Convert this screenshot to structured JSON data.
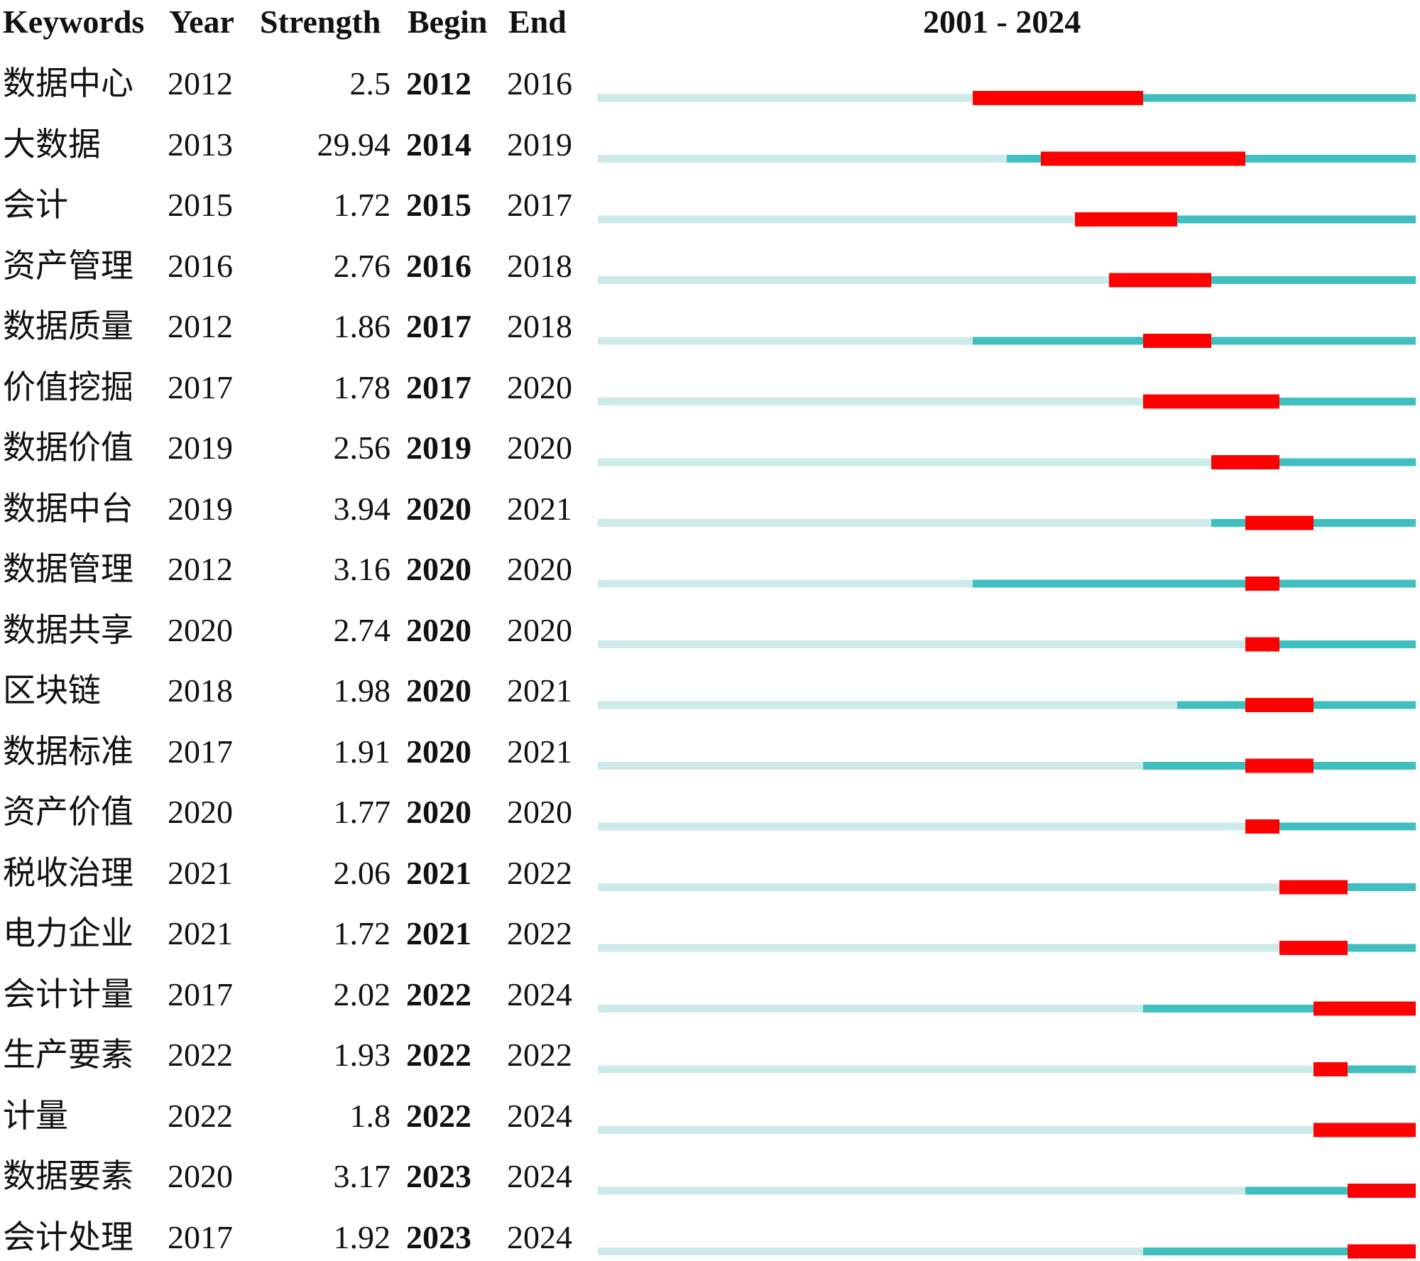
{
  "chart_data": {
    "type": "table",
    "headers": {
      "keywords": "Keywords",
      "year": "Year",
      "strength": "Strength",
      "begin": "Begin",
      "end": "End",
      "range": "2001 - 2024"
    },
    "timeline": {
      "start": 2001,
      "end": 2024
    },
    "colors": {
      "background_line": "#cdeaea",
      "active_line": "#3fbfbf",
      "burst": "#ff0000"
    },
    "rows": [
      {
        "keyword": "数据中心",
        "year": "2012",
        "strength": "2.5",
        "begin": "2012",
        "end": "2016"
      },
      {
        "keyword": "大数据",
        "year": "2013",
        "strength": "29.94",
        "begin": "2014",
        "end": "2019"
      },
      {
        "keyword": "会计",
        "year": "2015",
        "strength": "1.72",
        "begin": "2015",
        "end": "2017"
      },
      {
        "keyword": "资产管理",
        "year": "2016",
        "strength": "2.76",
        "begin": "2016",
        "end": "2018"
      },
      {
        "keyword": "数据质量",
        "year": "2012",
        "strength": "1.86",
        "begin": "2017",
        "end": "2018"
      },
      {
        "keyword": "价值挖掘",
        "year": "2017",
        "strength": "1.78",
        "begin": "2017",
        "end": "2020"
      },
      {
        "keyword": "数据价值",
        "year": "2019",
        "strength": "2.56",
        "begin": "2019",
        "end": "2020"
      },
      {
        "keyword": "数据中台",
        "year": "2019",
        "strength": "3.94",
        "begin": "2020",
        "end": "2021"
      },
      {
        "keyword": "数据管理",
        "year": "2012",
        "strength": "3.16",
        "begin": "2020",
        "end": "2020"
      },
      {
        "keyword": "数据共享",
        "year": "2020",
        "strength": "2.74",
        "begin": "2020",
        "end": "2020"
      },
      {
        "keyword": "区块链",
        "year": "2018",
        "strength": "1.98",
        "begin": "2020",
        "end": "2021"
      },
      {
        "keyword": "数据标准",
        "year": "2017",
        "strength": "1.91",
        "begin": "2020",
        "end": "2021"
      },
      {
        "keyword": "资产价值",
        "year": "2020",
        "strength": "1.77",
        "begin": "2020",
        "end": "2020"
      },
      {
        "keyword": "税收治理",
        "year": "2021",
        "strength": "2.06",
        "begin": "2021",
        "end": "2022"
      },
      {
        "keyword": "电力企业",
        "year": "2021",
        "strength": "1.72",
        "begin": "2021",
        "end": "2022"
      },
      {
        "keyword": "会计计量",
        "year": "2017",
        "strength": "2.02",
        "begin": "2022",
        "end": "2024"
      },
      {
        "keyword": "生产要素",
        "year": "2022",
        "strength": "1.93",
        "begin": "2022",
        "end": "2022"
      },
      {
        "keyword": "计量",
        "year": "2022",
        "strength": "1.8",
        "begin": "2022",
        "end": "2024"
      },
      {
        "keyword": "数据要素",
        "year": "2020",
        "strength": "3.17",
        "begin": "2023",
        "end": "2024"
      },
      {
        "keyword": "会计处理",
        "year": "2017",
        "strength": "1.92",
        "begin": "2023",
        "end": "2024"
      }
    ]
  }
}
